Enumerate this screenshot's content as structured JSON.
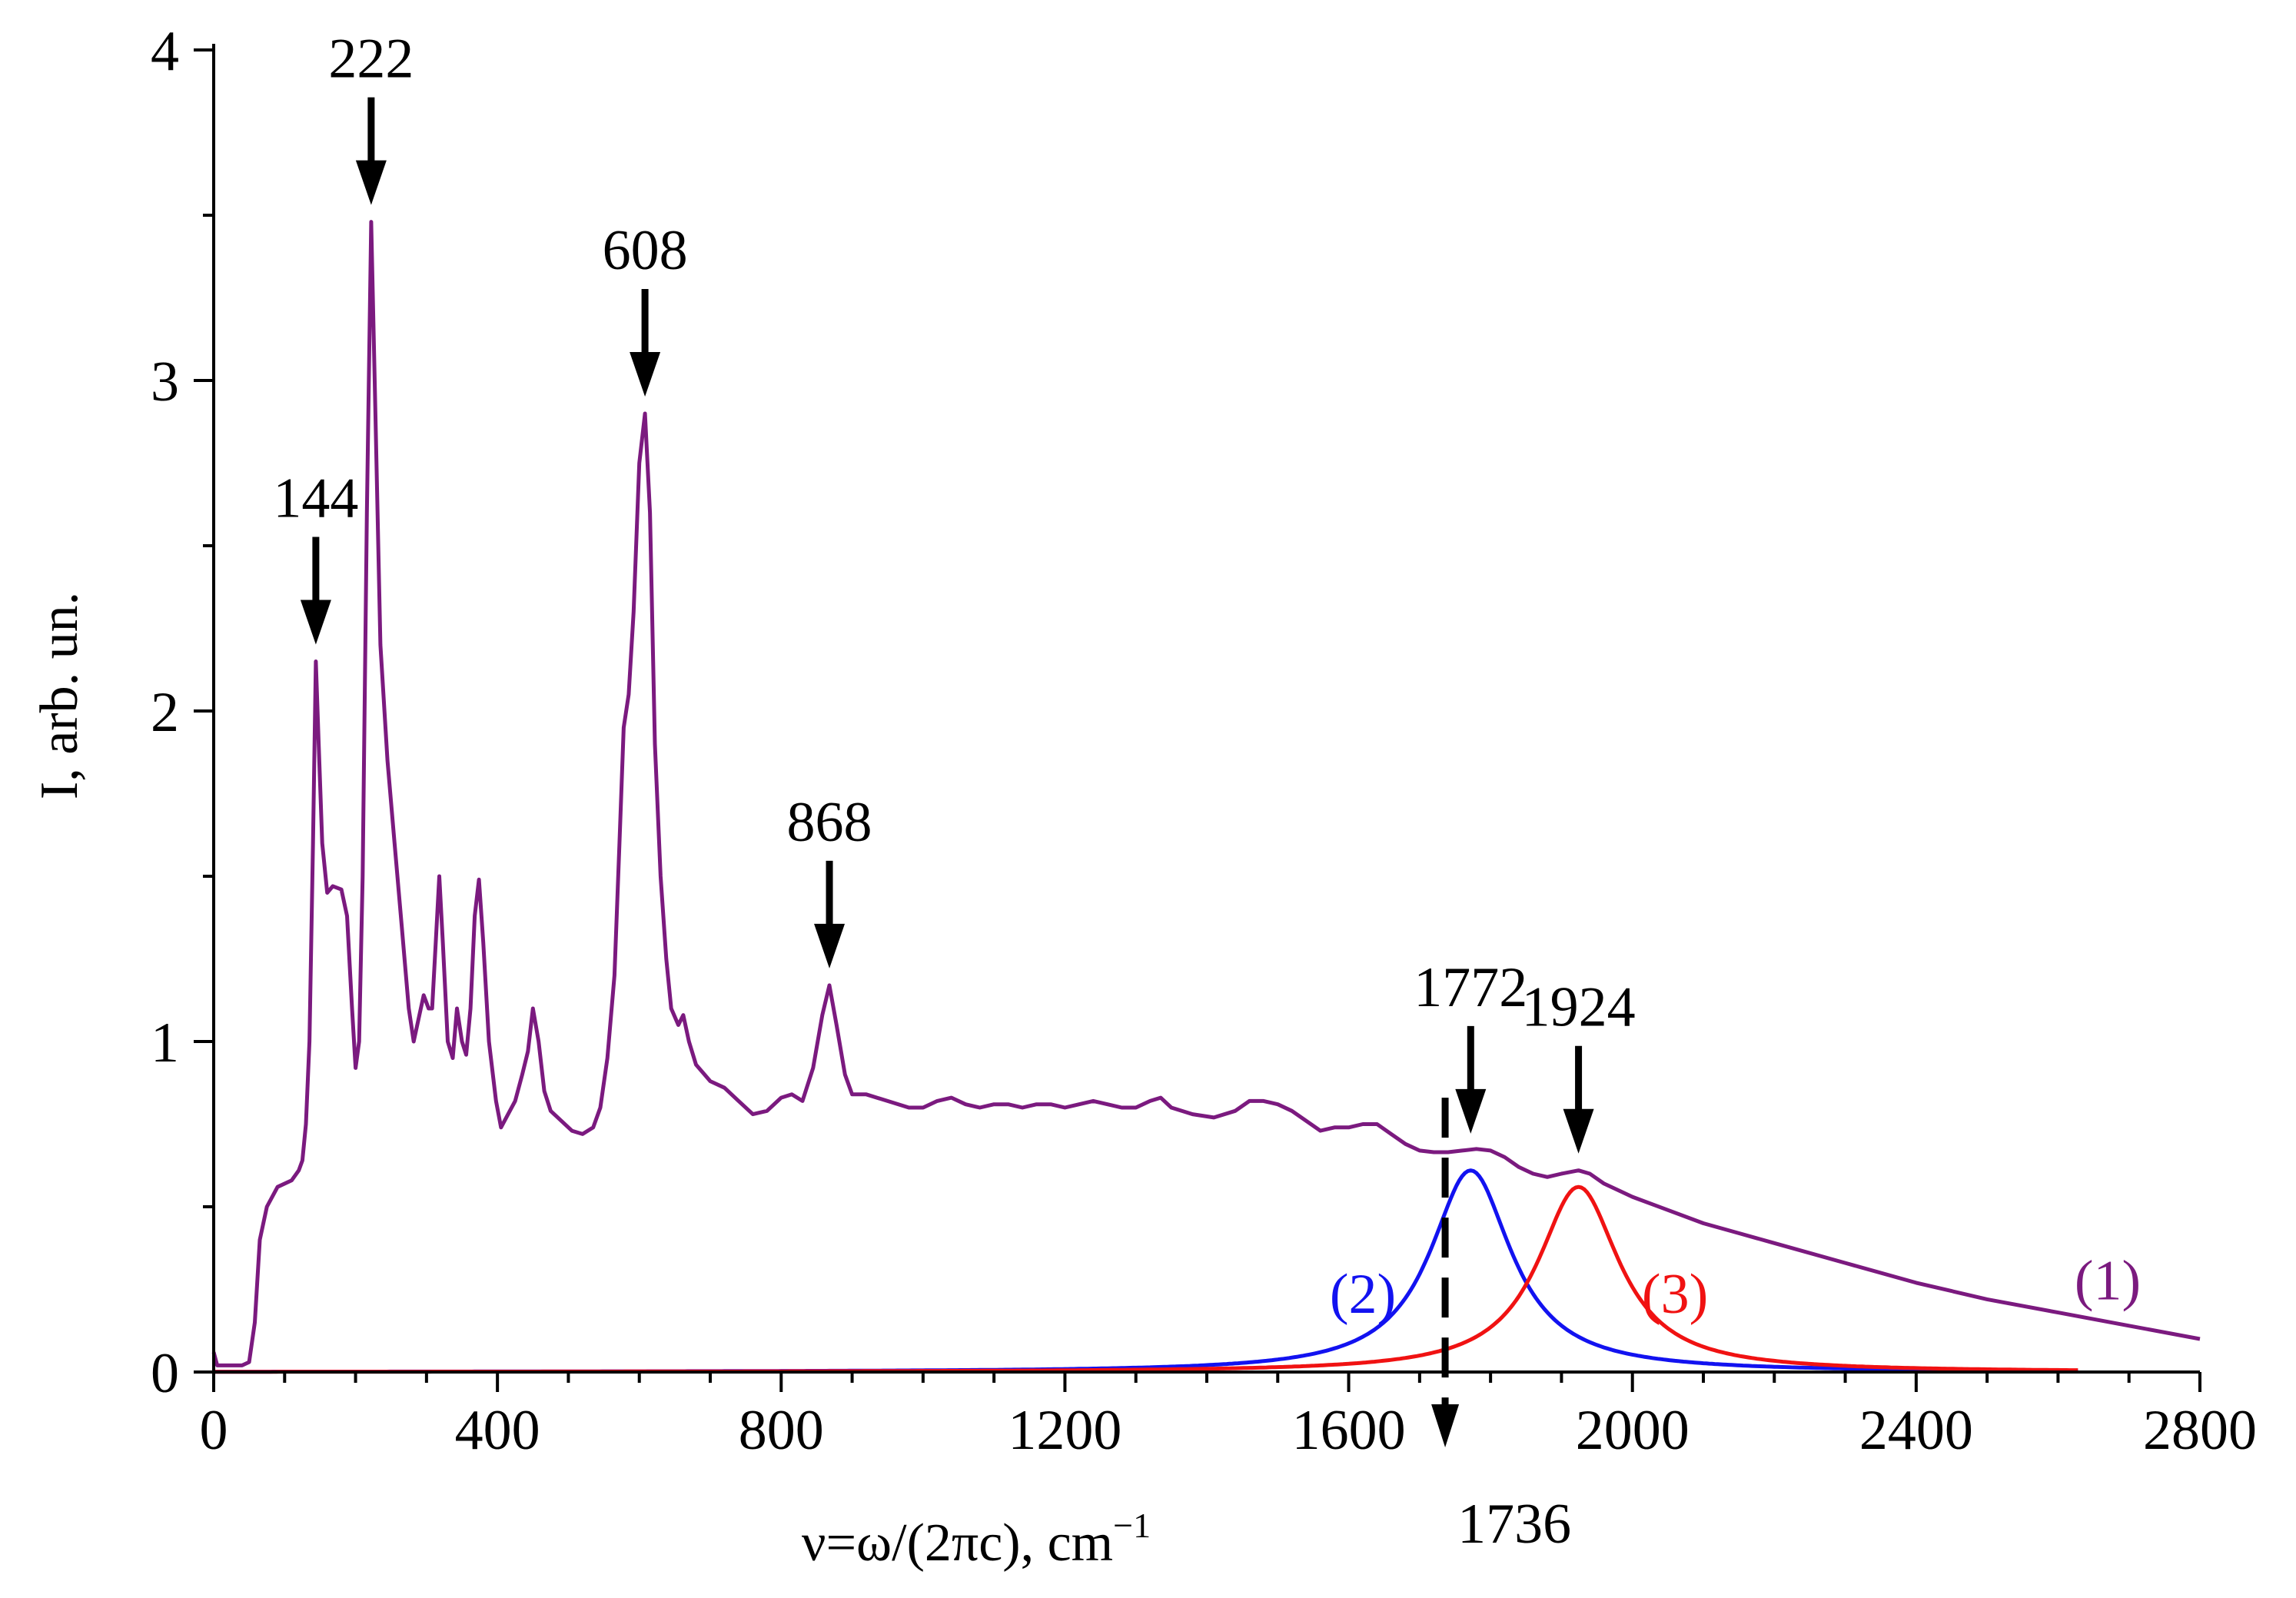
{
  "chart_data": {
    "type": "line",
    "title": "",
    "xlabel": "ν=ω/(2πc), cm",
    "xlabel_superscript": "−1",
    "ylabel": "I, arb. un.",
    "xlim": [
      0,
      2800
    ],
    "ylim": [
      0,
      4
    ],
    "x_ticks": [
      0,
      400,
      800,
      1200,
      1600,
      2000,
      2400,
      2800
    ],
    "y_ticks": [
      0,
      1,
      2,
      3,
      4
    ],
    "x_tick_labels": [
      "0",
      "400",
      "800",
      "1200",
      "1600",
      "2000",
      "2400",
      "2800"
    ],
    "y_tick_labels": [
      "0",
      "1",
      "2",
      "3",
      "4"
    ],
    "grid": false,
    "series": [
      {
        "name": "(1)",
        "color": "#7b1a7f",
        "points": [
          [
            0,
            0.06
          ],
          [
            5,
            0.02
          ],
          [
            40,
            0.02
          ],
          [
            50,
            0.03
          ],
          [
            58,
            0.15
          ],
          [
            65,
            0.4
          ],
          [
            75,
            0.5
          ],
          [
            90,
            0.56
          ],
          [
            110,
            0.58
          ],
          [
            120,
            0.61
          ],
          [
            125,
            0.64
          ],
          [
            130,
            0.75
          ],
          [
            135,
            1.0
          ],
          [
            140,
            1.6
          ],
          [
            144,
            2.15
          ],
          [
            148,
            1.9
          ],
          [
            153,
            1.6
          ],
          [
            160,
            1.45
          ],
          [
            168,
            1.47
          ],
          [
            180,
            1.46
          ],
          [
            188,
            1.38
          ],
          [
            195,
            1.1
          ],
          [
            200,
            0.92
          ],
          [
            205,
            1.0
          ],
          [
            210,
            1.5
          ],
          [
            216,
            2.6
          ],
          [
            222,
            3.48
          ],
          [
            228,
            2.9
          ],
          [
            235,
            2.2
          ],
          [
            245,
            1.85
          ],
          [
            255,
            1.6
          ],
          [
            265,
            1.35
          ],
          [
            275,
            1.1
          ],
          [
            282,
            1.0
          ],
          [
            290,
            1.08
          ],
          [
            296,
            1.14
          ],
          [
            303,
            1.1
          ],
          [
            308,
            1.1
          ],
          [
            313,
            1.3
          ],
          [
            318,
            1.5
          ],
          [
            323,
            1.3
          ],
          [
            330,
            1.0
          ],
          [
            337,
            0.95
          ],
          [
            343,
            1.1
          ],
          [
            350,
            1.0
          ],
          [
            356,
            0.96
          ],
          [
            362,
            1.1
          ],
          [
            368,
            1.38
          ],
          [
            374,
            1.49
          ],
          [
            380,
            1.3
          ],
          [
            388,
            1.0
          ],
          [
            398,
            0.82
          ],
          [
            405,
            0.74
          ],
          [
            415,
            0.78
          ],
          [
            425,
            0.82
          ],
          [
            435,
            0.9
          ],
          [
            443,
            0.97
          ],
          [
            450,
            1.1
          ],
          [
            458,
            1.0
          ],
          [
            466,
            0.85
          ],
          [
            475,
            0.79
          ],
          [
            490,
            0.76
          ],
          [
            505,
            0.73
          ],
          [
            520,
            0.72
          ],
          [
            535,
            0.74
          ],
          [
            545,
            0.8
          ],
          [
            555,
            0.95
          ],
          [
            565,
            1.2
          ],
          [
            572,
            1.6
          ],
          [
            578,
            1.95
          ],
          [
            585,
            2.05
          ],
          [
            592,
            2.3
          ],
          [
            600,
            2.75
          ],
          [
            608,
            2.9
          ],
          [
            615,
            2.6
          ],
          [
            622,
            1.9
          ],
          [
            630,
            1.5
          ],
          [
            638,
            1.25
          ],
          [
            645,
            1.1
          ],
          [
            655,
            1.05
          ],
          [
            662,
            1.08
          ],
          [
            670,
            1.0
          ],
          [
            680,
            0.93
          ],
          [
            700,
            0.88
          ],
          [
            720,
            0.86
          ],
          [
            740,
            0.82
          ],
          [
            760,
            0.78
          ],
          [
            780,
            0.79
          ],
          [
            800,
            0.83
          ],
          [
            815,
            0.84
          ],
          [
            830,
            0.82
          ],
          [
            845,
            0.92
          ],
          [
            858,
            1.08
          ],
          [
            868,
            1.17
          ],
          [
            878,
            1.05
          ],
          [
            890,
            0.9
          ],
          [
            900,
            0.84
          ],
          [
            920,
            0.84
          ],
          [
            950,
            0.82
          ],
          [
            980,
            0.8
          ],
          [
            1000,
            0.8
          ],
          [
            1020,
            0.82
          ],
          [
            1040,
            0.83
          ],
          [
            1060,
            0.81
          ],
          [
            1080,
            0.8
          ],
          [
            1100,
            0.81
          ],
          [
            1120,
            0.81
          ],
          [
            1140,
            0.8
          ],
          [
            1160,
            0.81
          ],
          [
            1180,
            0.81
          ],
          [
            1200,
            0.8
          ],
          [
            1220,
            0.81
          ],
          [
            1240,
            0.82
          ],
          [
            1260,
            0.81
          ],
          [
            1280,
            0.8
          ],
          [
            1300,
            0.8
          ],
          [
            1320,
            0.82
          ],
          [
            1335,
            0.83
          ],
          [
            1350,
            0.8
          ],
          [
            1380,
            0.78
          ],
          [
            1410,
            0.77
          ],
          [
            1440,
            0.79
          ],
          [
            1460,
            0.82
          ],
          [
            1480,
            0.82
          ],
          [
            1500,
            0.81
          ],
          [
            1520,
            0.79
          ],
          [
            1540,
            0.76
          ],
          [
            1560,
            0.73
          ],
          [
            1580,
            0.74
          ],
          [
            1600,
            0.74
          ],
          [
            1620,
            0.75
          ],
          [
            1640,
            0.75
          ],
          [
            1660,
            0.72
          ],
          [
            1680,
            0.69
          ],
          [
            1700,
            0.67
          ],
          [
            1720,
            0.665
          ],
          [
            1740,
            0.665
          ],
          [
            1760,
            0.67
          ],
          [
            1780,
            0.675
          ],
          [
            1800,
            0.67
          ],
          [
            1820,
            0.65
          ],
          [
            1840,
            0.62
          ],
          [
            1860,
            0.6
          ],
          [
            1880,
            0.59
          ],
          [
            1900,
            0.6
          ],
          [
            1924,
            0.61
          ],
          [
            1940,
            0.6
          ],
          [
            1960,
            0.57
          ],
          [
            1980,
            0.55
          ],
          [
            2000,
            0.53
          ],
          [
            2050,
            0.49
          ],
          [
            2100,
            0.45
          ],
          [
            2150,
            0.42
          ],
          [
            2200,
            0.39
          ],
          [
            2300,
            0.33
          ],
          [
            2400,
            0.27
          ],
          [
            2500,
            0.22
          ],
          [
            2600,
            0.18
          ],
          [
            2700,
            0.14
          ],
          [
            2800,
            0.1
          ]
        ]
      },
      {
        "name": "(2)",
        "color": "#1212f0",
        "center": 1772,
        "amplitude": 0.61,
        "hwhm": 70,
        "x_range": [
          0,
          2630
        ]
      },
      {
        "name": "(3)",
        "color": "#f01212",
        "center": 1924,
        "amplitude": 0.56,
        "hwhm": 70,
        "x_range": [
          0,
          2630
        ]
      }
    ],
    "annotations": [
      {
        "text": "144",
        "x": 144,
        "y": 2.15,
        "type": "down-arrow"
      },
      {
        "text": "222",
        "x": 222,
        "y": 3.48,
        "type": "down-arrow"
      },
      {
        "text": "608",
        "x": 608,
        "y": 2.9,
        "type": "down-arrow"
      },
      {
        "text": "868",
        "x": 868,
        "y": 1.17,
        "type": "down-arrow"
      },
      {
        "text": "1772",
        "x": 1772,
        "y": 0.67,
        "type": "down-arrow"
      },
      {
        "text": "1924",
        "x": 1924,
        "y": 0.61,
        "type": "down-arrow"
      },
      {
        "text": "1736",
        "x": 1736,
        "y": 0.83,
        "type": "dashed-line-arrow"
      }
    ],
    "series_labels": [
      {
        "text": "(1)",
        "series": "(1)",
        "x": 2670,
        "y": 0.28
      },
      {
        "text": "(2)",
        "series": "(2)",
        "x": 1620,
        "y": 0.24
      },
      {
        "text": "(3)",
        "series": "(3)",
        "x": 2060,
        "y": 0.24
      }
    ]
  }
}
